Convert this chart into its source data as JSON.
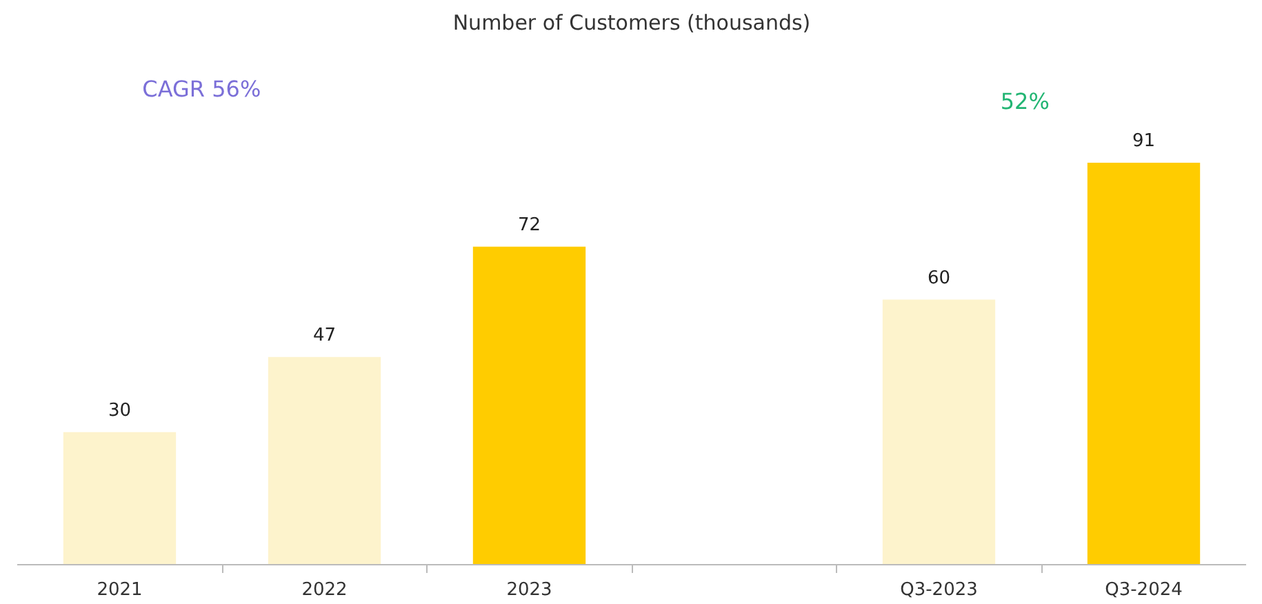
{
  "chart_data": {
    "type": "bar",
    "title": "Number of Customers (thousands)",
    "categories": [
      "2021",
      "2022",
      "2023",
      null,
      "Q3-2023",
      "Q3-2024"
    ],
    "values": [
      30,
      47,
      72,
      null,
      60,
      91
    ],
    "colors": [
      "#fdf3cc",
      "#fdf3cc",
      "#ffcc00",
      "#ffffff",
      "#fdf3cc",
      "#ffcc00"
    ],
    "data_labels": true,
    "annotations": [
      "CAGR 56%",
      "52%"
    ]
  }
}
